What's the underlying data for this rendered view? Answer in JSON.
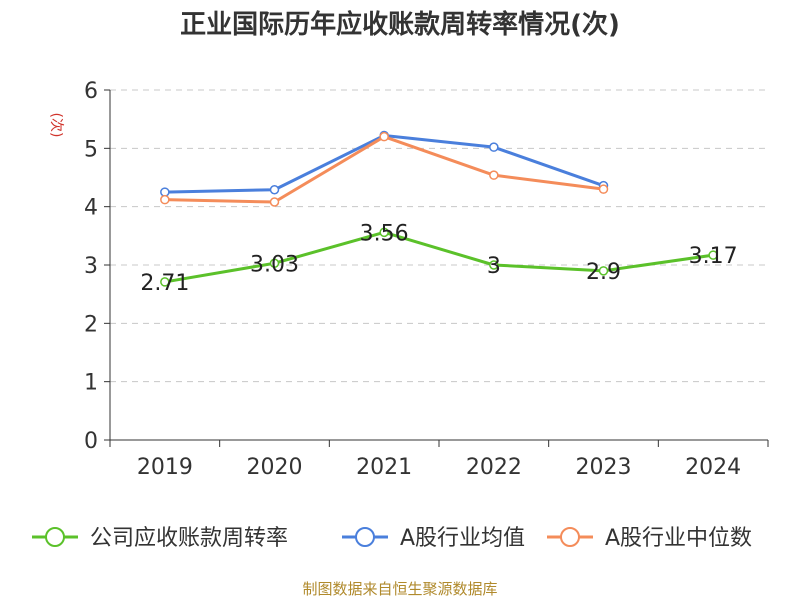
{
  "chart_data": {
    "type": "line",
    "title": "正业国际历年应收账款周转率情况(次)",
    "ylabel": "(次)",
    "xlabel": "",
    "categories": [
      "2019",
      "2020",
      "2021",
      "2022",
      "2023",
      "2024"
    ],
    "ylim": [
      0,
      6
    ],
    "yticks": [
      "0",
      "1",
      "2",
      "3",
      "4",
      "5",
      "6"
    ],
    "grid": true,
    "legend_position": "bottom",
    "series": [
      {
        "name": "公司应收账款周转率",
        "color": "#5bc12a",
        "values": [
          2.71,
          3.03,
          3.56,
          3,
          2.9,
          3.17
        ],
        "labels": [
          "2.71",
          "3.03",
          "3.56",
          "3",
          "2.9",
          "3.17"
        ]
      },
      {
        "name": "A股行业均值",
        "color": "#4a7fdc",
        "values": [
          4.25,
          4.29,
          5.22,
          5.02,
          4.36,
          null
        ]
      },
      {
        "name": "A股行业中位数",
        "color": "#f48c5a",
        "values": [
          4.12,
          4.08,
          5.2,
          4.54,
          4.3,
          null
        ]
      }
    ]
  },
  "source": "制图数据来自恒生聚源数据库"
}
